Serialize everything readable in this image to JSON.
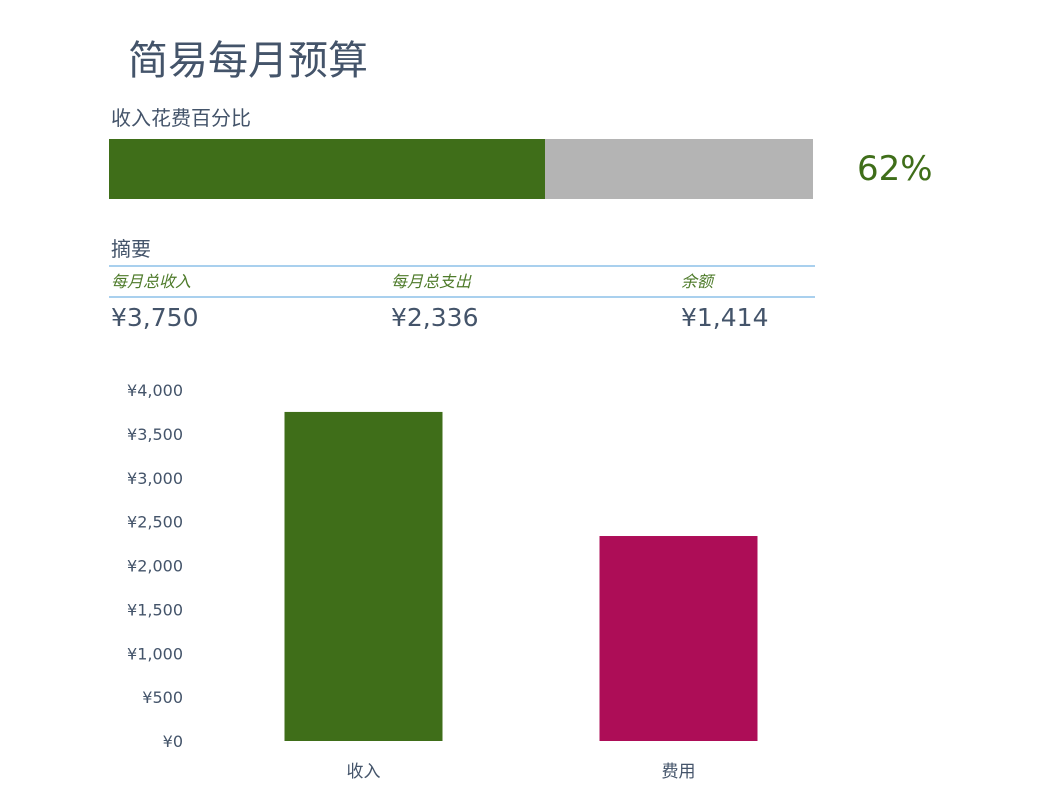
{
  "header": {
    "title": "简易每月预算"
  },
  "progress": {
    "label": "收入花费百分比",
    "percent_text": "62%",
    "fraction": 0.62,
    "fill_color": "#3f6e19",
    "track_color": "#b4b4b4"
  },
  "summary": {
    "heading": "摘要",
    "items": [
      {
        "label": "每月总收入",
        "value": "¥3,750"
      },
      {
        "label": "每月总支出",
        "value": "¥2,336"
      },
      {
        "label": "余额",
        "value": "¥1,414"
      }
    ]
  },
  "chart_data": {
    "type": "bar",
    "categories": [
      "收入",
      "费用"
    ],
    "values": [
      3750,
      2336
    ],
    "colors": [
      "#3f6e19",
      "#ad0d57"
    ],
    "ylim": [
      0,
      4000
    ],
    "yticks": [
      0,
      500,
      1000,
      1500,
      2000,
      2500,
      3000,
      3500,
      4000
    ],
    "ytick_labels": [
      "¥0",
      "¥500",
      "¥1,000",
      "¥1,500",
      "¥2,000",
      "¥2,500",
      "¥3,000",
      "¥3,500",
      "¥4,000"
    ],
    "grid": false
  }
}
